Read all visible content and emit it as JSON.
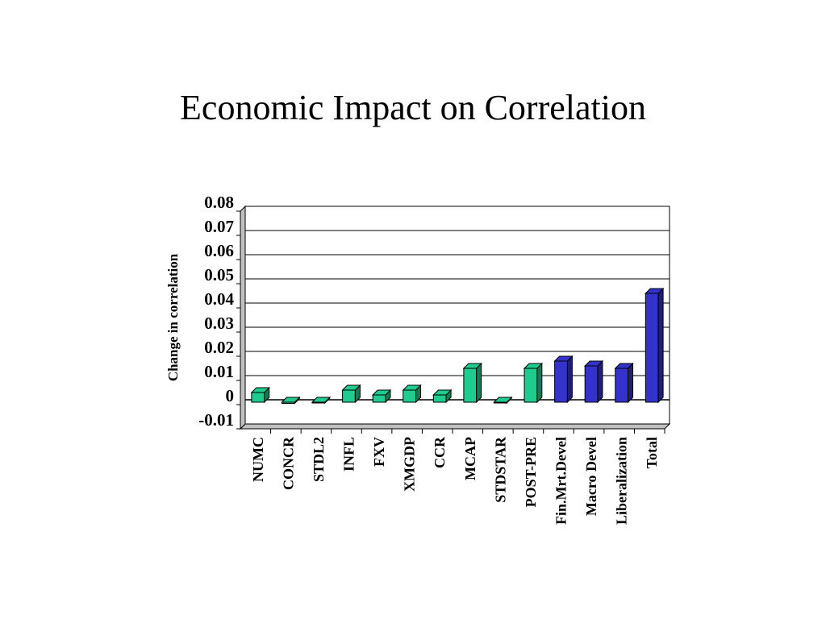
{
  "slide": {
    "title": "Economic Impact on Correlation"
  },
  "chart_data": {
    "type": "bar",
    "title": "Economic Impact on Correlation",
    "xlabel": "",
    "ylabel": "Change in correlation",
    "ylim": [
      -0.01,
      0.08
    ],
    "yticks": [
      "0.08",
      "0.07",
      "0.06",
      "0.05",
      "0.04",
      "0.03",
      "0.02",
      "0.01",
      "0",
      "-0.01"
    ],
    "grid": true,
    "categories": [
      "NUMC",
      "CONCR",
      "STDL2",
      "INFL",
      "FXV",
      "XMGDP",
      "CCR",
      "MCAP",
      "STDSTAR",
      "POST-PRE",
      "Fin.Mrt.Devel",
      "Macro Devel",
      "Liberalization",
      "Total"
    ],
    "values": [
      0.004,
      -0.0005,
      -0.0003,
      0.005,
      0.003,
      0.005,
      0.003,
      0.014,
      0.0,
      0.014,
      0.017,
      0.015,
      0.014,
      0.045
    ],
    "colors": [
      "#1fcc8f",
      "#1fcc8f",
      "#1fcc8f",
      "#1fcc8f",
      "#1fcc8f",
      "#1fcc8f",
      "#1fcc8f",
      "#1fcc8f",
      "#1fcc8f",
      "#1fcc8f",
      "#3333cc",
      "#3333cc",
      "#3333cc",
      "#3333cc"
    ]
  }
}
